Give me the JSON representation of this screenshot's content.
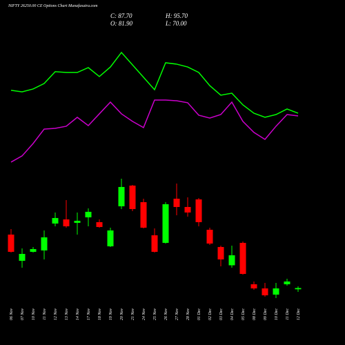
{
  "chart_data": {
    "type": "candlestick",
    "title": "NIFTY 26250.00 CE Options Chart Munafasutra.com",
    "info": [
      "C: 87.70",
      "H: 95.70",
      "O: 81.90",
      "L: 70.00"
    ],
    "categories": [
      "06 Nov",
      "07 Nov",
      "10 Nov",
      "11 Nov",
      "12 Nov",
      "13 Nov",
      "14 Nov",
      "17 Nov",
      "18 Nov",
      "19 Nov",
      "20 Nov",
      "21 Nov",
      "24 Nov",
      "25 Nov",
      "26 Nov",
      "27 Nov",
      "28 Nov",
      "01 Dec",
      "02 Dec",
      "03 Dec",
      "04 Dec",
      "05 Dec",
      "08 Dec",
      "09 Dec",
      "10 Dec",
      "11 Dec",
      "12 Dec"
    ],
    "open": [
      335.6,
      214,
      255.6,
      262,
      386.8,
      406,
      390,
      415.6,
      393.2,
      281.2,
      466.8,
      562.8,
      486,
      332.4,
      297.2,
      502,
      463.6,
      498.8,
      358,
      278,
      193.2,
      297.2,
      105.2,
      86,
      57.2,
      105.2,
      81.9
    ],
    "high": [
      361.2,
      271.6,
      278,
      354.8,
      438,
      495.6,
      438,
      457.2,
      406,
      367.6,
      594.8,
      566,
      502,
      364.4,
      486,
      572.4,
      508.4,
      505.2,
      367.6,
      284.4,
      284.4,
      303.6,
      118,
      111.6,
      111.6,
      130.8,
      95.7
    ],
    "low": [
      252.4,
      182,
      252.4,
      220.4,
      374,
      367.6,
      335.6,
      374,
      367.6,
      278,
      454,
      444.4,
      364.4,
      252.4,
      294,
      425.2,
      418.8,
      374,
      287.6,
      188.4,
      182,
      150,
      79.6,
      47.6,
      41.2,
      98.8,
      70
    ],
    "close": [
      255.6,
      246,
      268.4,
      322.8,
      412.4,
      374,
      399.6,
      441.2,
      370.8,
      354.8,
      556.4,
      454,
      367.6,
      255.6,
      476.4,
      463.6,
      438,
      393.2,
      294,
      220.4,
      239.6,
      153.2,
      86,
      54,
      86,
      118,
      87.7
    ],
    "up_color": "#00ff00",
    "down_color": "#ff0000",
    "ylim": [
      20,
      620
    ],
    "y2lim": [
      0,
      100
    ],
    "lines": [
      {
        "color": "#00ff00",
        "axis": "y2",
        "values": [
          60.6,
          59.4,
          61.7,
          66.1,
          75.6,
          75,
          75,
          78.9,
          71.7,
          79.4,
          91.1,
          81.1,
          71.1,
          61.1,
          82.8,
          81.7,
          79.4,
          75,
          64.4,
          56.7,
          58.3,
          48.9,
          42.2,
          38.9,
          41.1,
          45.6,
          42.2
        ]
      },
      {
        "color": "#cc00cc",
        "axis": "y2",
        "values": [
          2.8,
          7.8,
          17.8,
          29.4,
          30,
          31.7,
          38.9,
          32.2,
          41.7,
          51.1,
          41.7,
          35.6,
          30.6,
          52.8,
          52.8,
          52.2,
          50.6,
          40.6,
          38.3,
          41.1,
          51.1,
          35.6,
          26.7,
          21.1,
          31.7,
          41.1,
          40
        ]
      }
    ]
  }
}
